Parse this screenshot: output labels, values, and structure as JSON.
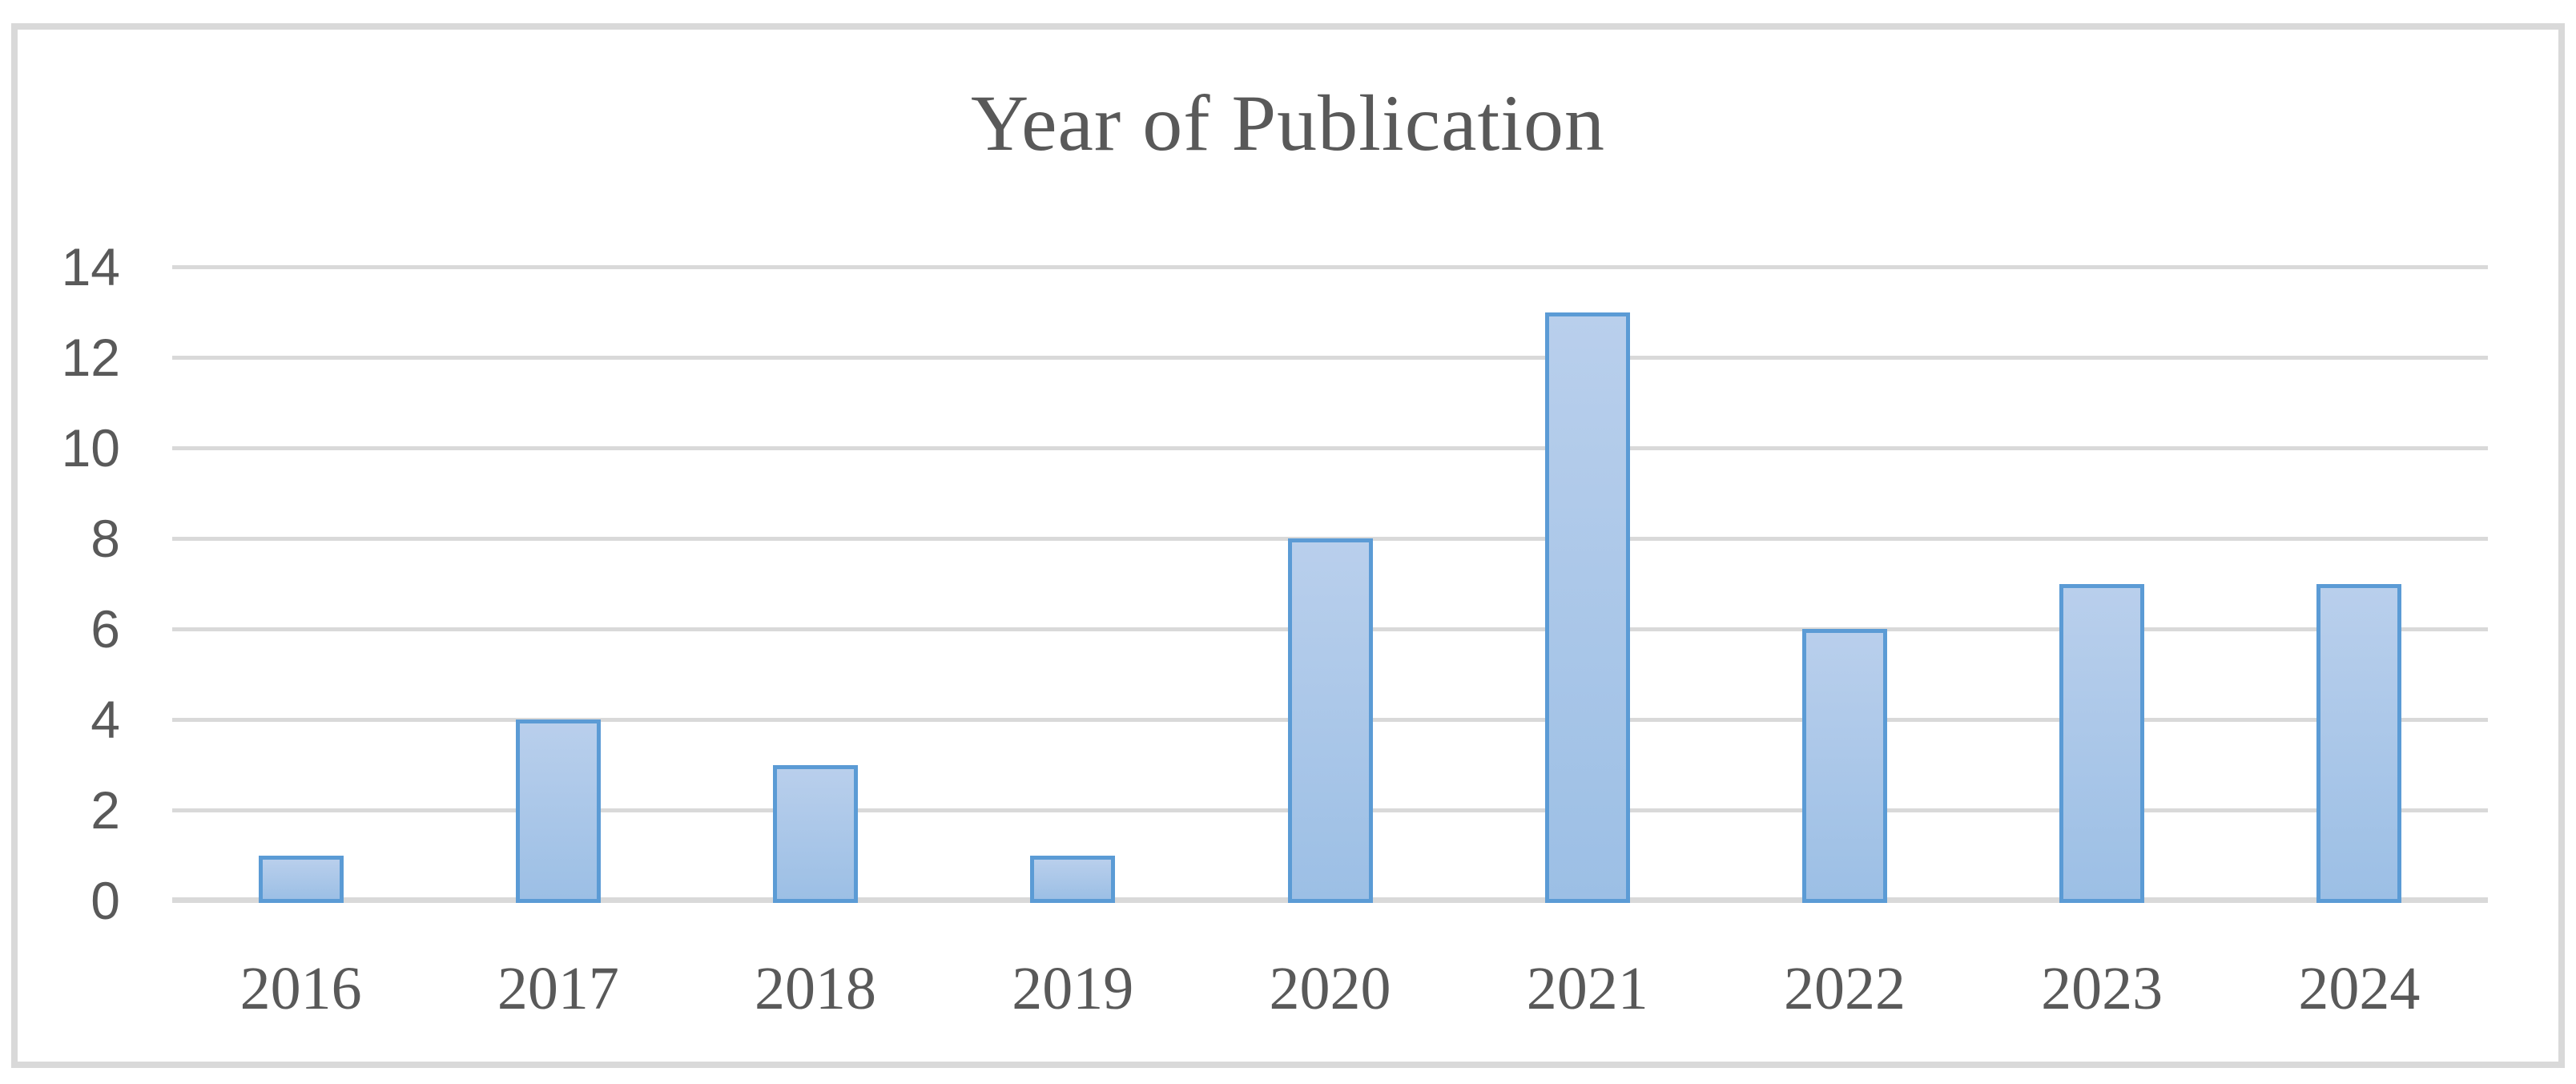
{
  "chart_data": {
    "type": "bar",
    "title": "Year of Publication",
    "categories": [
      "2016",
      "2017",
      "2018",
      "2019",
      "2020",
      "2021",
      "2022",
      "2023",
      "2024"
    ],
    "values": [
      1,
      4,
      3,
      1,
      8,
      13,
      6,
      7,
      7
    ],
    "xlabel": "",
    "ylabel": "",
    "ylim": [
      0,
      14
    ],
    "ytick_step": 2,
    "ytick_labels": [
      "14",
      "12",
      "10",
      "8",
      "6",
      "4",
      "2",
      "0"
    ],
    "grid": true,
    "legend_position": "none",
    "colors": {
      "background": "#ffffff",
      "frame_border": "#d9d9d9",
      "gridline": "#d9d9d9",
      "axis_line": "#d9d9d9",
      "bar_border": "#5b9bd5",
      "bar_fill_top": "#b9cfec",
      "bar_fill_bottom": "#9cbfe5",
      "text": "#595959"
    }
  }
}
